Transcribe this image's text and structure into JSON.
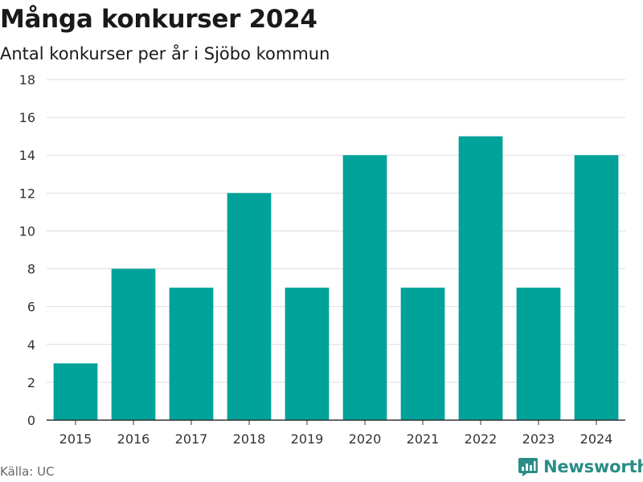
{
  "header": {
    "title": "Många konkurser 2024",
    "subtitle": "Antal konkurser per år i Sjöbo kommun"
  },
  "footer": {
    "source": "Källa: UC",
    "brand": "Newsworthy"
  },
  "colors": {
    "bar": "#00A29A",
    "grid": "#dddddd",
    "axis": "#333333",
    "brand": "#2a8d86"
  },
  "chart_data": {
    "type": "bar",
    "title": "Många konkurser 2024",
    "subtitle": "Antal konkurser per år i Sjöbo kommun",
    "categories": [
      "2015",
      "2016",
      "2017",
      "2018",
      "2019",
      "2020",
      "2021",
      "2022",
      "2023",
      "2024"
    ],
    "values": [
      3,
      8,
      7,
      12,
      7,
      14,
      7,
      15,
      7,
      14
    ],
    "ylim": [
      0,
      18
    ],
    "yticks": [
      0,
      2,
      4,
      6,
      8,
      10,
      12,
      14,
      16,
      18
    ],
    "grid": true,
    "legend": "none"
  }
}
